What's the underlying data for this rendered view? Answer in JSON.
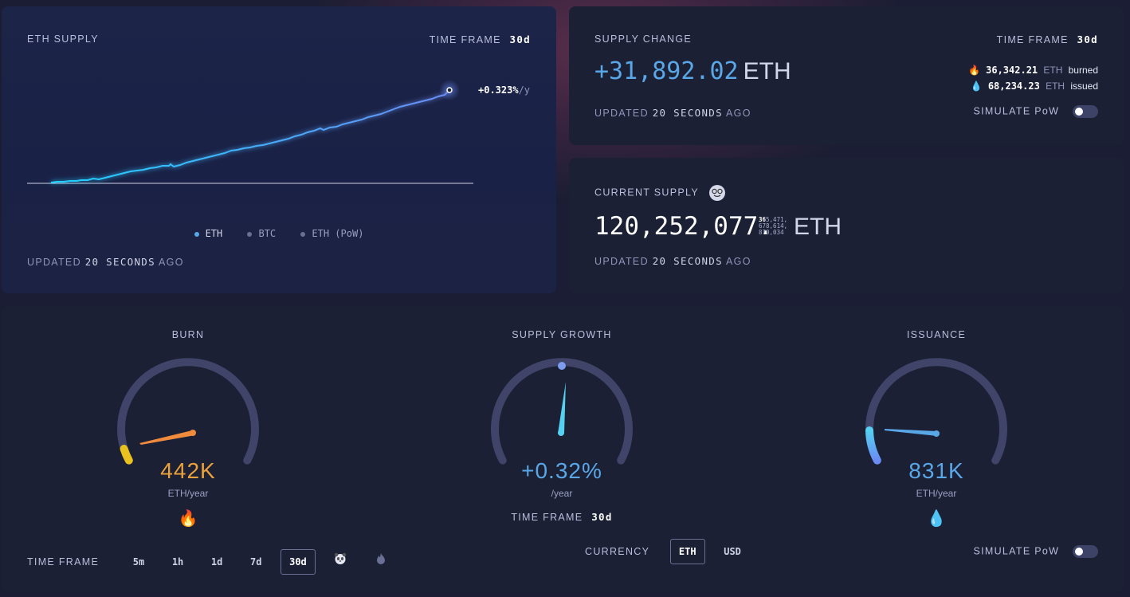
{
  "supply_chart": {
    "title": "ETH SUPPLY",
    "timeframe_label": "TIME FRAME",
    "timeframe_value": "30d",
    "rate": "+0.323%",
    "rate_unit": "/y",
    "legend": [
      "ETH",
      "BTC",
      "ETH (PoW)"
    ],
    "updated_prefix": "UPDATED",
    "updated_value": "20 SECONDS",
    "updated_suffix": "AGO"
  },
  "supply_change": {
    "title": "SUPPLY CHANGE",
    "timeframe_label": "TIME FRAME",
    "timeframe_value": "30d",
    "value": "+31,892.02",
    "unit": "ETH",
    "burned_value": "36,342.21",
    "burned_unit": "ETH",
    "burned_label": "burned",
    "issued_value": "68,234.23",
    "issued_unit": "ETH",
    "issued_label": "issued",
    "updated_prefix": "UPDATED",
    "updated_value": "20 SECONDS",
    "updated_suffix": "AGO",
    "simulate_label": "SIMULATE PoW",
    "simulate_on": false
  },
  "current_supply": {
    "title": "CURRENT SUPPLY",
    "integer": "120,252,077.",
    "frac_line1_bold": "36",
    "frac_line1": "5,471,",
    "frac_line2": "678,614,",
    "frac_line3": "870,034",
    "unit": "ETH",
    "updated_prefix": "UPDATED",
    "updated_value": "20 SECONDS",
    "updated_suffix": "AGO"
  },
  "gauges": {
    "burn": {
      "title": "BURN",
      "value": "442K",
      "unit": "ETH/year",
      "icon": "fire-icon",
      "color": "#e9a13b",
      "level": 0.09
    },
    "growth": {
      "title": "SUPPLY GROWTH",
      "value": "+0.32%",
      "unit": "/year",
      "timeframe_label": "TIME FRAME",
      "timeframe_value": "30d",
      "color": "#5aa7e8",
      "level": 0.5
    },
    "issuance": {
      "title": "ISSUANCE",
      "value": "831K",
      "unit": "ETH/year",
      "icon": "droplet-icon",
      "color": "#5aa7e8",
      "level": 0.17
    }
  },
  "controls": {
    "timeframe_label": "TIME FRAME",
    "timeframes": [
      "5m",
      "1h",
      "1d",
      "7d",
      "30d"
    ],
    "active_timeframe": "30d",
    "currency_label": "CURRENCY",
    "currencies": [
      "ETH",
      "USD"
    ],
    "active_currency": "ETH",
    "simulate_label": "SIMULATE PoW",
    "simulate_on": false
  },
  "colors": {
    "accent": "#5aa7e8",
    "burn": "#e9a13b",
    "line_start": "#1fd2ff",
    "line_end": "#6b8cf5"
  }
}
